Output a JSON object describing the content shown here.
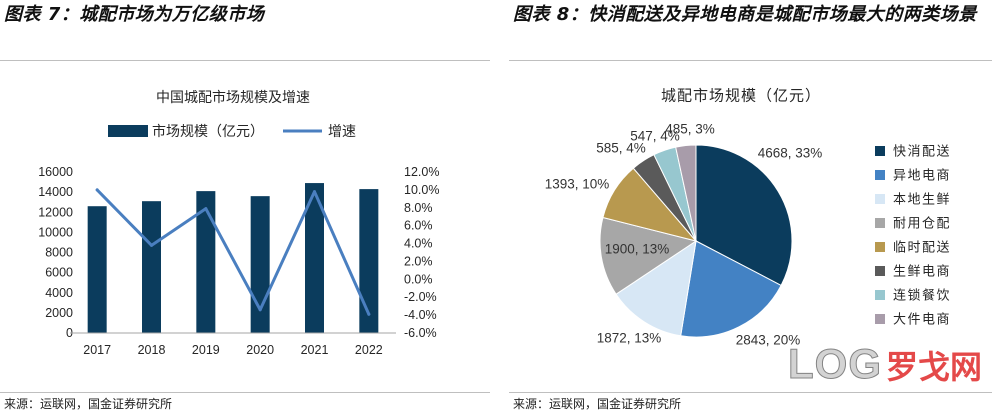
{
  "figures": [
    {
      "header": "图表 7：城配市场为万亿级市场",
      "source": "来源：运联网，国金证券研究所"
    },
    {
      "header": "图表 8：快消配送及异地电商是城配市场最大的两类场景",
      "source": "来源：运联网，国金证券研究所"
    }
  ],
  "watermark": {
    "latin": "LOG",
    "cn": "罗戈网"
  },
  "chart_data": [
    {
      "type": "bar",
      "title": "中国城配市场规模及增速",
      "categories": [
        "2017",
        "2018",
        "2019",
        "2020",
        "2021",
        "2022"
      ],
      "series": [
        {
          "name": "市场规模（亿元）",
          "chart": "bar",
          "axis": "left",
          "color": "#0b3c5d",
          "values": [
            12600,
            13100,
            14100,
            13600,
            14900,
            14300
          ]
        },
        {
          "name": "增速",
          "chart": "line",
          "axis": "right",
          "color": "#4a7fc0",
          "values": [
            10.0,
            3.8,
            7.9,
            -3.4,
            9.8,
            -3.9
          ]
        }
      ],
      "ylim": [
        0,
        16000
      ],
      "yticks": [
        0,
        2000,
        4000,
        6000,
        8000,
        10000,
        12000,
        14000,
        16000
      ],
      "y2lim": [
        -6,
        12
      ],
      "y2ticks": [
        "-6.0%",
        "-4.0%",
        "-2.0%",
        "0.0%",
        "2.0%",
        "4.0%",
        "6.0%",
        "8.0%",
        "10.0%",
        "12.0%"
      ],
      "legend": "top",
      "grid": false
    },
    {
      "type": "pie",
      "title": "城配市场规模（亿元）",
      "categories": [
        "快消配送",
        "异地电商",
        "本地生鲜",
        "耐用仓配",
        "临时配送",
        "生鲜电商",
        "连锁餐饮",
        "大件电商"
      ],
      "values": [
        4668,
        2843,
        1872,
        1900,
        1393,
        585,
        547,
        485
      ],
      "labels": [
        "4668, 33%",
        "2843, 20%",
        "1872, 13%",
        "1900, 13%",
        "1393, 10%",
        "585, 4%",
        "547, 4%",
        "485, 3%"
      ],
      "colors": [
        "#0b3c5d",
        "#4382c4",
        "#d7e7f5",
        "#a7a7a7",
        "#b8994f",
        "#5a5a5a",
        "#97c7cf",
        "#a89caa"
      ],
      "legend": "right"
    }
  ]
}
